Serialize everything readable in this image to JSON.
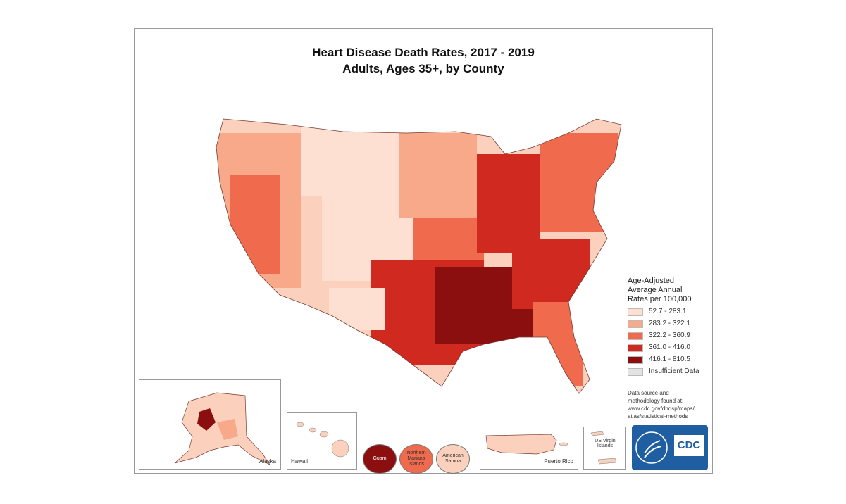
{
  "title_line1": "Heart Disease Death Rates, 2017 - 2019",
  "title_line2": "Adults, Ages 35+, by County",
  "legend": {
    "title_lines": [
      "Age-Adjusted",
      "Average Annual",
      "Rates per 100,000"
    ],
    "classes": [
      {
        "label": "52.7 - 283.1",
        "color": "#fde0d2"
      },
      {
        "label": "283.2 - 322.1",
        "color": "#f7a98a"
      },
      {
        "label": "322.2 - 360.9",
        "color": "#f06a4e"
      },
      {
        "label": "361.0 - 416.0",
        "color": "#d0291f"
      },
      {
        "label": "416.1 - 810.5",
        "color": "#8c0f10"
      },
      {
        "label": "Insufficient Data",
        "color": "#e3e3e3"
      }
    ]
  },
  "source_note_lines": [
    "Data source and",
    "methodology found at:",
    "www.cdc.gov/dhdsp/maps/",
    "atlas/statistical-methods"
  ],
  "insets": {
    "alaska": "Alaska",
    "hawaii": "Hawaii",
    "guam": "Guam",
    "northern_mariana": "Northern Mariana Islands",
    "american_samoa": "American Samoa",
    "puerto_rico": "Puerto Rico",
    "us_virgin_islands": "US Virgin Islands"
  },
  "logo_text": "CDC"
}
